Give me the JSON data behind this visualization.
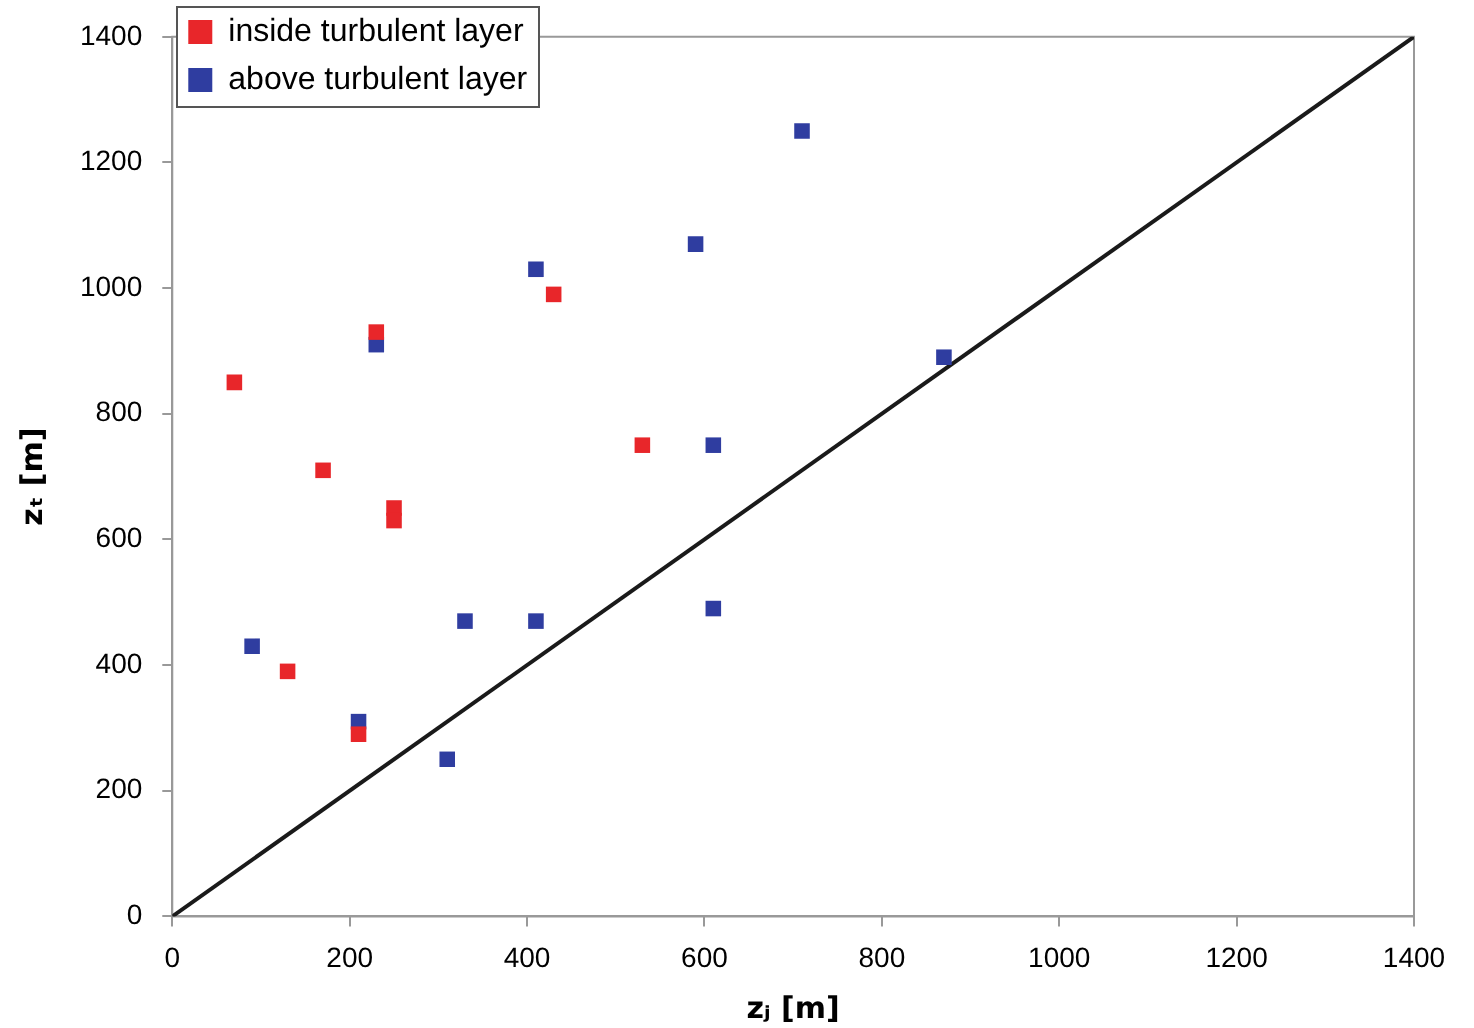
{
  "chart_data": {
    "type": "scatter",
    "xlabel": "zⱼ [m]",
    "ylabel": "zₜ [m]",
    "xlim": [
      0,
      1400
    ],
    "ylim": [
      0,
      1400
    ],
    "xticks": [
      0,
      200,
      400,
      600,
      800,
      1000,
      1200,
      1400
    ],
    "yticks": [
      0,
      200,
      400,
      600,
      800,
      1000,
      1200,
      1400
    ],
    "grid": false,
    "legend": "top left",
    "marker": "square",
    "series": [
      {
        "name": "inside turbulent layer",
        "color": "#e8262a",
        "x": [
          70,
          230,
          430,
          170,
          250,
          250,
          530,
          130,
          210
        ],
        "values": [
          850,
          930,
          990,
          710,
          650,
          630,
          750,
          390,
          290
        ]
      },
      {
        "name": "above turbulent layer",
        "color": "#2f3da0",
        "x": [
          710,
          410,
          590,
          230,
          870,
          610,
          330,
          410,
          610,
          90,
          210,
          310
        ],
        "values": [
          1250,
          1030,
          1070,
          910,
          890,
          750,
          470,
          470,
          490,
          430,
          310,
          250
        ]
      },
      {
        "type": "line",
        "color": "#1a1a1a",
        "x": [
          0,
          1400
        ],
        "values": [
          0,
          1400
        ],
        "marker": "none",
        "line_style": "solid"
      }
    ]
  }
}
